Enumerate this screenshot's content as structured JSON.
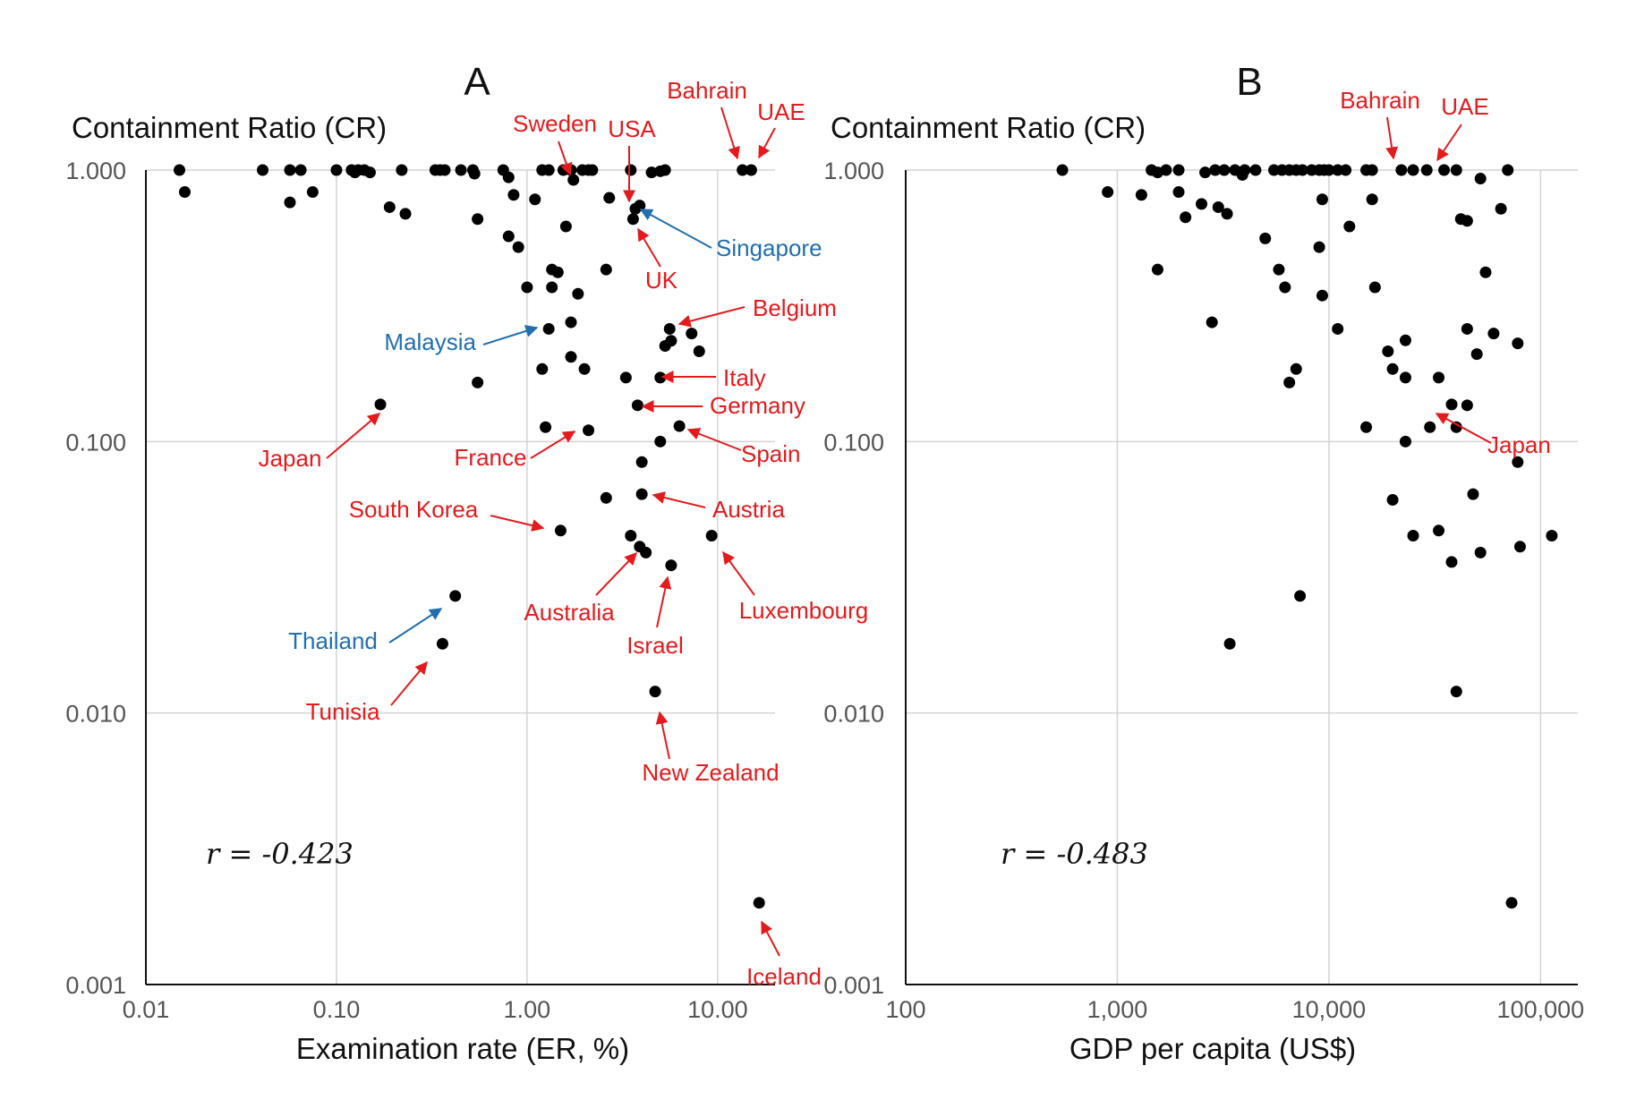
{
  "chart_data": [
    {
      "type": "scatter",
      "panel": "A",
      "ylabel": "Containment Ratio (CR)",
      "xlabel": "Examination rate (ER, %)",
      "x_scale": "log",
      "y_scale": "log",
      "xlim": [
        0.01,
        20
      ],
      "ylim": [
        0.001,
        1.0
      ],
      "x_ticks": [
        "0.01",
        "0.10",
        "1.00",
        "10.00"
      ],
      "y_ticks": [
        "1.000",
        "0.100",
        "0.010",
        "0.001"
      ],
      "grid": true,
      "correlation_text": "r = -0.423",
      "points": [
        [
          0.015,
          1.0
        ],
        [
          0.016,
          0.83
        ],
        [
          0.041,
          1.0
        ],
        [
          0.057,
          1.0
        ],
        [
          0.057,
          0.76
        ],
        [
          0.065,
          1.0
        ],
        [
          0.075,
          0.83
        ],
        [
          0.1,
          1.0
        ],
        [
          0.12,
          1.0
        ],
        [
          0.125,
          0.98
        ],
        [
          0.13,
          1.0
        ],
        [
          0.14,
          1.0
        ],
        [
          0.15,
          0.98
        ],
        [
          0.19,
          0.73
        ],
        [
          0.22,
          1.0
        ],
        [
          0.23,
          0.69
        ],
        [
          0.33,
          1.0
        ],
        [
          0.35,
          1.0
        ],
        [
          0.37,
          1.0
        ],
        [
          0.45,
          1.0
        ],
        [
          0.52,
          1.0
        ],
        [
          0.53,
          0.97
        ],
        [
          0.55,
          0.66
        ],
        [
          0.75,
          1.0
        ],
        [
          0.8,
          0.94
        ],
        [
          0.85,
          0.81
        ],
        [
          0.8,
          0.57
        ],
        [
          0.9,
          0.52
        ],
        [
          1.0,
          0.37
        ],
        [
          1.1,
          0.78
        ],
        [
          1.2,
          1.0
        ],
        [
          1.3,
          1.0
        ],
        [
          1.35,
          0.43
        ],
        [
          1.35,
          0.37
        ],
        [
          1.45,
          0.42
        ],
        [
          1.55,
          1.0
        ],
        [
          1.6,
          0.62
        ],
        [
          1.7,
          1.0
        ],
        [
          1.75,
          0.92
        ],
        [
          1.85,
          0.35
        ],
        [
          1.95,
          1.0
        ],
        [
          2.1,
          1.0
        ],
        [
          2.2,
          1.0
        ],
        [
          2.6,
          0.43
        ],
        [
          2.7,
          0.79
        ],
        [
          3.5,
          1.0
        ],
        [
          3.6,
          0.66
        ],
        [
          3.7,
          0.72
        ],
        [
          3.9,
          0.74
        ],
        [
          4.5,
          0.98
        ],
        [
          5.0,
          0.99
        ],
        [
          5.3,
          1.0
        ],
        [
          1.3,
          0.26
        ],
        [
          1.7,
          0.275
        ],
        [
          1.7,
          0.205
        ],
        [
          1.2,
          0.185
        ],
        [
          2.0,
          0.185
        ],
        [
          0.55,
          0.165
        ],
        [
          1.25,
          0.113
        ],
        [
          2.1,
          0.11
        ],
        [
          5.0,
          0.1
        ],
        [
          4.0,
          0.084
        ],
        [
          2.6,
          0.062
        ],
        [
          4.0,
          0.064
        ],
        [
          3.3,
          0.172
        ],
        [
          5.6,
          0.26
        ],
        [
          5.3,
          0.225
        ],
        [
          5.7,
          0.235
        ],
        [
          7.3,
          0.25
        ],
        [
          8.0,
          0.215
        ],
        [
          6.3,
          0.114
        ],
        [
          1.5,
          0.047
        ],
        [
          3.5,
          0.045
        ],
        [
          3.9,
          0.041
        ],
        [
          4.2,
          0.039
        ],
        [
          5.7,
          0.035
        ],
        [
          9.3,
          0.045
        ],
        [
          0.17,
          0.137
        ],
        [
          0.42,
          0.027
        ],
        [
          0.36,
          0.018
        ],
        [
          4.7,
          0.012
        ],
        [
          16.5,
          0.002
        ],
        [
          5.0,
          0.172
        ],
        [
          3.8,
          0.136
        ],
        [
          13.5,
          1.0
        ],
        [
          15.0,
          1.0
        ]
      ],
      "annotations": [
        {
          "label": "Bahrain",
          "color": "#e41a1c"
        },
        {
          "label": "UAE",
          "color": "#e41a1c"
        },
        {
          "label": "Sweden",
          "color": "#e41a1c"
        },
        {
          "label": "USA",
          "color": "#e41a1c"
        },
        {
          "label": "Singapore",
          "color": "#1f6fb2"
        },
        {
          "label": "UK",
          "color": "#e41a1c"
        },
        {
          "label": "Belgium",
          "color": "#e41a1c"
        },
        {
          "label": "Malaysia",
          "color": "#1f6fb2"
        },
        {
          "label": "Italy",
          "color": "#e41a1c"
        },
        {
          "label": "Germany",
          "color": "#e41a1c"
        },
        {
          "label": "Japan",
          "color": "#e41a1c"
        },
        {
          "label": "France",
          "color": "#e41a1c"
        },
        {
          "label": "Spain",
          "color": "#e41a1c"
        },
        {
          "label": "South Korea",
          "color": "#e41a1c"
        },
        {
          "label": "Austria",
          "color": "#e41a1c"
        },
        {
          "label": "Australia",
          "color": "#e41a1c"
        },
        {
          "label": "Luxembourg",
          "color": "#e41a1c"
        },
        {
          "label": "Israel",
          "color": "#e41a1c"
        },
        {
          "label": "Thailand",
          "color": "#1f6fb2"
        },
        {
          "label": "Tunisia",
          "color": "#e41a1c"
        },
        {
          "label": "New Zealand",
          "color": "#e41a1c"
        },
        {
          "label": "Iceland",
          "color": "#e41a1c"
        }
      ]
    },
    {
      "type": "scatter",
      "panel": "B",
      "ylabel": "Containment Ratio (CR)",
      "xlabel": "GDP per capita (US$)",
      "x_scale": "log",
      "y_scale": "log",
      "xlim": [
        100,
        150000
      ],
      "ylim": [
        0.001,
        1.0
      ],
      "x_ticks": [
        "100",
        "1,000",
        "10,000",
        "100,000"
      ],
      "y_ticks": [
        "1.000",
        "0.100",
        "0.010",
        "0.001"
      ],
      "grid": true,
      "correlation_text": "r = -0.483",
      "points": [
        [
          550,
          1.0
        ],
        [
          900,
          0.83
        ],
        [
          1300,
          0.81
        ],
        [
          1450,
          1.0
        ],
        [
          1550,
          0.98
        ],
        [
          1700,
          1.0
        ],
        [
          1950,
          1.0
        ],
        [
          1950,
          0.83
        ],
        [
          2100,
          0.67
        ],
        [
          2500,
          0.75
        ],
        [
          2600,
          0.98
        ],
        [
          2900,
          1.0
        ],
        [
          3000,
          0.73
        ],
        [
          3200,
          1.0
        ],
        [
          3300,
          0.69
        ],
        [
          3600,
          1.0
        ],
        [
          3900,
          0.96
        ],
        [
          4000,
          1.0
        ],
        [
          4500,
          1.0
        ],
        [
          5000,
          0.56
        ],
        [
          5500,
          1.0
        ],
        [
          5800,
          0.43
        ],
        [
          6000,
          1.0
        ],
        [
          6200,
          0.37
        ],
        [
          6500,
          1.0
        ],
        [
          7000,
          1.0
        ],
        [
          7500,
          1.0
        ],
        [
          8300,
          1.0
        ],
        [
          9000,
          1.0
        ],
        [
          9300,
          0.78
        ],
        [
          9500,
          1.0
        ],
        [
          10000,
          1.0
        ],
        [
          9000,
          0.52
        ],
        [
          9300,
          0.345
        ],
        [
          11000,
          1.0
        ],
        [
          12000,
          1.0
        ],
        [
          12500,
          0.62
        ],
        [
          15000,
          1.0
        ],
        [
          16000,
          1.0
        ],
        [
          16000,
          0.78
        ],
        [
          16500,
          0.37
        ],
        [
          1550,
          0.43
        ],
        [
          2800,
          0.275
        ],
        [
          11000,
          0.26
        ],
        [
          19000,
          0.215
        ],
        [
          20000,
          0.185
        ],
        [
          23000,
          0.236
        ],
        [
          23000,
          0.172
        ],
        [
          33000,
          0.172
        ],
        [
          7000,
          0.185
        ],
        [
          6500,
          0.165
        ],
        [
          15000,
          0.113
        ],
        [
          23000,
          0.1
        ],
        [
          30000,
          0.113
        ],
        [
          38000,
          0.137
        ],
        [
          40000,
          0.113
        ],
        [
          45000,
          0.136
        ],
        [
          45000,
          0.26
        ],
        [
          50000,
          0.21
        ],
        [
          52000,
          0.93
        ],
        [
          55000,
          0.42
        ],
        [
          60000,
          0.25
        ],
        [
          65000,
          0.72
        ],
        [
          70000,
          1.0
        ],
        [
          78000,
          0.23
        ],
        [
          42000,
          0.66
        ],
        [
          45000,
          0.65
        ],
        [
          48000,
          0.064
        ],
        [
          78000,
          0.084
        ],
        [
          20000,
          0.061
        ],
        [
          25000,
          0.045
        ],
        [
          33000,
          0.047
        ],
        [
          38000,
          0.036
        ],
        [
          52000,
          0.039
        ],
        [
          80000,
          0.041
        ],
        [
          113000,
          0.045
        ],
        [
          7300,
          0.027
        ],
        [
          3400,
          0.018
        ],
        [
          40000,
          0.012
        ],
        [
          73000,
          0.002
        ],
        [
          25000,
          1.0
        ],
        [
          29000,
          1.0
        ],
        [
          40000,
          1.0
        ],
        [
          22000,
          1.0
        ],
        [
          35000,
          1.0
        ]
      ],
      "annotations": [
        {
          "label": "Bahrain",
          "color": "#e41a1c"
        },
        {
          "label": "UAE",
          "color": "#e41a1c"
        },
        {
          "label": "Japan",
          "color": "#e41a1c"
        }
      ]
    }
  ]
}
